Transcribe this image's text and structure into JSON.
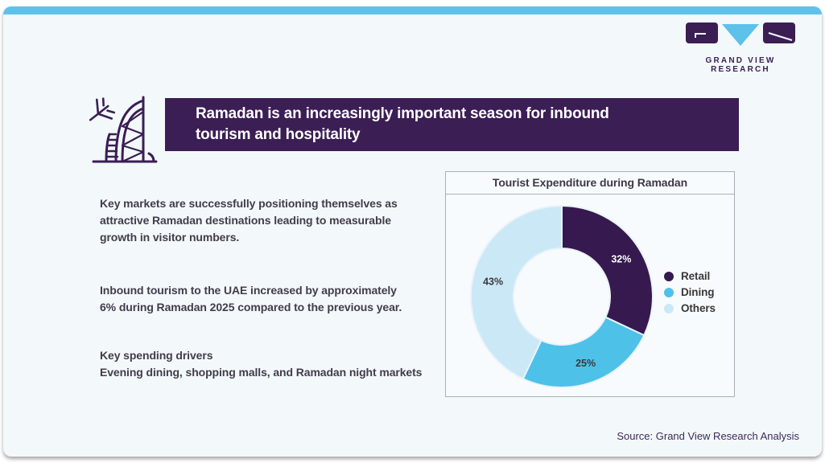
{
  "page": {
    "card_bg": "#f3f8fb",
    "topbar_color": "#5ec1ea",
    "accent_purple": "#3b1e54",
    "accent_blue": "#5ec1ea"
  },
  "logo": {
    "text": "GRAND VIEW RESEARCH"
  },
  "header": {
    "line1": "Ramadan is an increasingly important season for inbound",
    "line2": "tourism and hospitality",
    "bg": "#3b1e54",
    "text_color": "#ffffff"
  },
  "paragraphs": [
    {
      "text": "Key markets are successfully positioning themselves as attractive Ramadan destinations leading to measurable growth in visitor numbers."
    },
    {
      "text": "Inbound tourism to the UAE increased by approximately 6% during Ramadan 2025 compared to the previous year."
    },
    {
      "heading": "Key spending drivers",
      "text": "Evening dining, shopping malls, and Ramadan night markets"
    }
  ],
  "chart_data": {
    "type": "pie",
    "variant": "donut",
    "title": "Tourist Expenditure during Ramadan",
    "categories": [
      "Retail",
      "Dining",
      "Others"
    ],
    "values": [
      32,
      25,
      43
    ],
    "labels": [
      "32%",
      "25%",
      "43%"
    ],
    "colors": [
      "#35194f",
      "#4ec1e9",
      "#cbe8f7"
    ],
    "label_colors": [
      "#ffffff",
      "#3a3a3a",
      "#3a3a3a"
    ],
    "legend_position": "right",
    "start_angle_deg": 0,
    "inner_radius_ratio": 0.53,
    "slice_stroke": "#e9f3fa"
  },
  "source": {
    "text": "Source: Grand View Research Analysis"
  }
}
